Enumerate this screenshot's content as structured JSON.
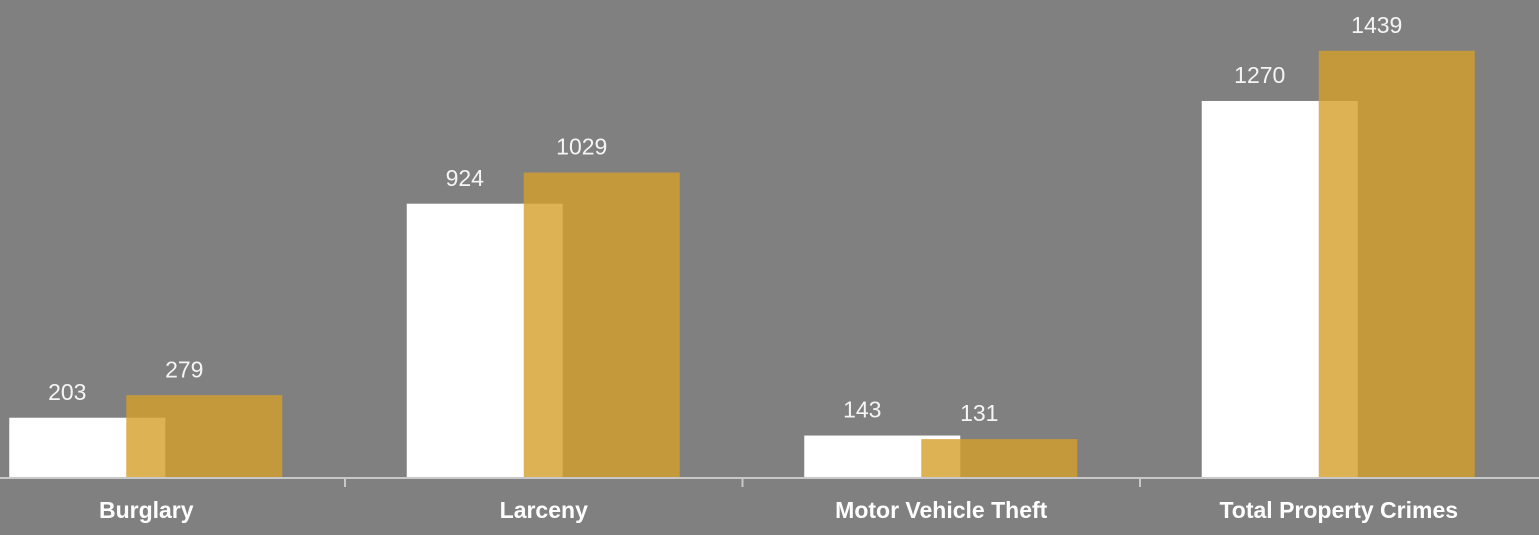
{
  "chart_data": {
    "type": "bar",
    "categories": [
      "Burglary",
      "Larceny",
      "Motor Vehicle Theft",
      "Total Property Crimes"
    ],
    "series": [
      {
        "color": "#ffffff",
        "values": [
          203,
          924,
          143,
          1270
        ]
      },
      {
        "color": "#d59f2a",
        "values": [
          279,
          1029,
          131,
          1439
        ]
      }
    ],
    "ylim": [
      0,
      1600
    ]
  }
}
